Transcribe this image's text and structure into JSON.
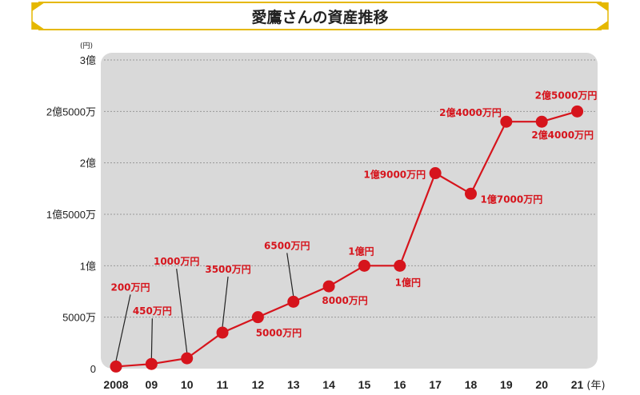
{
  "title": "愛鷹さんの資産推移",
  "colors": {
    "frame_gold": "#e5b800",
    "plot_bg": "#d9d9d9",
    "series": "#d6141c",
    "grid": "#999999"
  },
  "chart_data": {
    "type": "line",
    "title": "愛鷹さんの資産推移",
    "y_unit_label": "(円)",
    "x_unit_label": "(年)",
    "ylim": [
      0,
      300000000
    ],
    "grid": "horizontal-dotted",
    "y_ticks": [
      {
        "value": 0,
        "label": "0"
      },
      {
        "value": 50000000,
        "label": "5000万"
      },
      {
        "value": 100000000,
        "label": "1億"
      },
      {
        "value": 150000000,
        "label": "1億5000万"
      },
      {
        "value": 200000000,
        "label": "2億"
      },
      {
        "value": 250000000,
        "label": "2億5000万"
      },
      {
        "value": 300000000,
        "label": "3億"
      }
    ],
    "categories": [
      "2008",
      "09",
      "10",
      "11",
      "12",
      "13",
      "14",
      "15",
      "16",
      "17",
      "18",
      "19",
      "20",
      "21"
    ],
    "values": [
      2000000,
      4500000,
      10000000,
      35000000,
      50000000,
      65000000,
      80000000,
      100000000,
      100000000,
      190000000,
      170000000,
      240000000,
      240000000,
      250000000
    ],
    "point_labels": [
      "200万円",
      "450万円",
      "1000万円",
      "3500万円",
      "5000万円",
      "6500万円",
      "8000万円",
      "1億円",
      "1億円",
      "1億9000万円",
      "1億7000万円",
      "2億4000万円",
      "2億4000万円",
      "2億5000万円"
    ]
  }
}
